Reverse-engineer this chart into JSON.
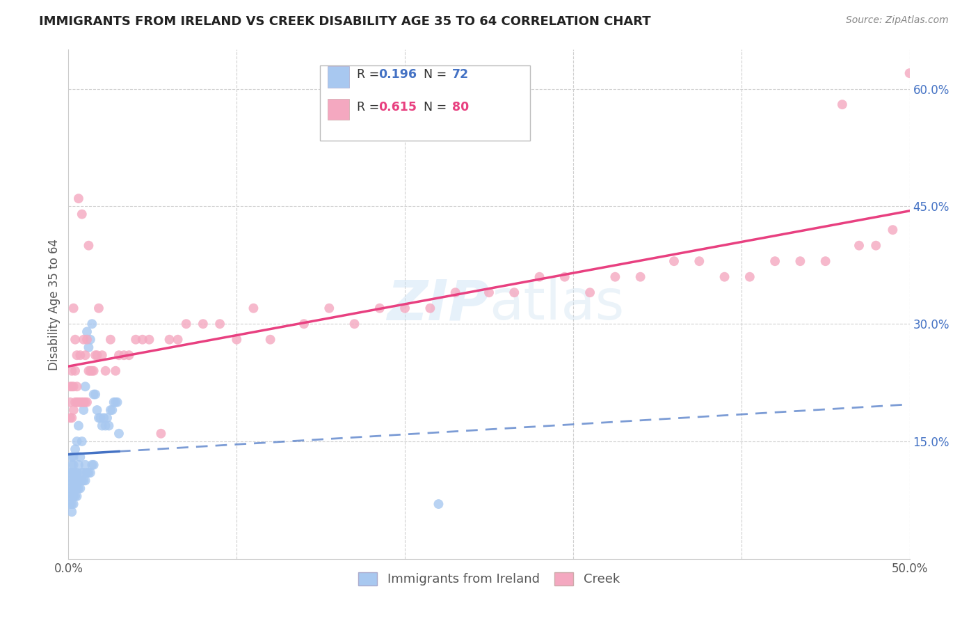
{
  "title": "IMMIGRANTS FROM IRELAND VS CREEK DISABILITY AGE 35 TO 64 CORRELATION CHART",
  "source": "Source: ZipAtlas.com",
  "ylabel": "Disability Age 35 to 64",
  "xlim": [
    0.0,
    0.5
  ],
  "ylim": [
    0.0,
    0.65
  ],
  "xticks": [
    0.0,
    0.1,
    0.2,
    0.3,
    0.4,
    0.5
  ],
  "xticklabels": [
    "0.0%",
    "",
    "",
    "",
    "",
    "50.0%"
  ],
  "yticks_right": [
    0.15,
    0.3,
    0.45,
    0.6
  ],
  "ytick_right_labels": [
    "15.0%",
    "30.0%",
    "45.0%",
    "60.0%"
  ],
  "legend_labels": [
    "Immigrants from Ireland",
    "Creek"
  ],
  "blue_R": "0.196",
  "blue_N": "72",
  "pink_R": "0.615",
  "pink_N": "80",
  "blue_color": "#a8c8f0",
  "pink_color": "#f4a8c0",
  "blue_line_color": "#4472c4",
  "pink_line_color": "#e84080",
  "blue_scatter_x": [
    0.001,
    0.001,
    0.001,
    0.001,
    0.001,
    0.002,
    0.002,
    0.002,
    0.002,
    0.002,
    0.002,
    0.002,
    0.002,
    0.003,
    0.003,
    0.003,
    0.003,
    0.003,
    0.003,
    0.003,
    0.004,
    0.004,
    0.004,
    0.004,
    0.004,
    0.005,
    0.005,
    0.005,
    0.005,
    0.005,
    0.006,
    0.006,
    0.006,
    0.006,
    0.007,
    0.007,
    0.007,
    0.008,
    0.008,
    0.008,
    0.009,
    0.009,
    0.009,
    0.01,
    0.01,
    0.01,
    0.011,
    0.011,
    0.012,
    0.012,
    0.013,
    0.013,
    0.014,
    0.014,
    0.015,
    0.015,
    0.016,
    0.017,
    0.018,
    0.019,
    0.02,
    0.021,
    0.022,
    0.023,
    0.024,
    0.025,
    0.026,
    0.027,
    0.028,
    0.029,
    0.22,
    0.03
  ],
  "blue_scatter_y": [
    0.07,
    0.08,
    0.09,
    0.1,
    0.11,
    0.06,
    0.07,
    0.08,
    0.09,
    0.1,
    0.11,
    0.12,
    0.13,
    0.07,
    0.08,
    0.09,
    0.1,
    0.11,
    0.12,
    0.13,
    0.08,
    0.09,
    0.1,
    0.11,
    0.14,
    0.08,
    0.09,
    0.1,
    0.11,
    0.15,
    0.09,
    0.1,
    0.12,
    0.17,
    0.09,
    0.1,
    0.13,
    0.1,
    0.11,
    0.15,
    0.1,
    0.11,
    0.19,
    0.1,
    0.12,
    0.22,
    0.11,
    0.29,
    0.11,
    0.27,
    0.11,
    0.28,
    0.12,
    0.3,
    0.12,
    0.21,
    0.21,
    0.19,
    0.18,
    0.18,
    0.17,
    0.18,
    0.17,
    0.18,
    0.17,
    0.19,
    0.19,
    0.2,
    0.2,
    0.2,
    0.07,
    0.16
  ],
  "pink_scatter_x": [
    0.001,
    0.001,
    0.001,
    0.002,
    0.002,
    0.002,
    0.003,
    0.003,
    0.003,
    0.004,
    0.004,
    0.004,
    0.005,
    0.005,
    0.005,
    0.006,
    0.006,
    0.007,
    0.007,
    0.008,
    0.008,
    0.009,
    0.009,
    0.01,
    0.01,
    0.011,
    0.011,
    0.012,
    0.012,
    0.013,
    0.014,
    0.015,
    0.016,
    0.017,
    0.018,
    0.02,
    0.022,
    0.025,
    0.028,
    0.03,
    0.033,
    0.036,
    0.04,
    0.044,
    0.048,
    0.055,
    0.06,
    0.065,
    0.07,
    0.08,
    0.09,
    0.1,
    0.11,
    0.12,
    0.14,
    0.155,
    0.17,
    0.185,
    0.2,
    0.215,
    0.23,
    0.25,
    0.265,
    0.28,
    0.295,
    0.31,
    0.325,
    0.34,
    0.36,
    0.375,
    0.39,
    0.405,
    0.42,
    0.435,
    0.45,
    0.46,
    0.47,
    0.48,
    0.49,
    0.5
  ],
  "pink_scatter_y": [
    0.2,
    0.22,
    0.18,
    0.22,
    0.18,
    0.24,
    0.19,
    0.22,
    0.32,
    0.2,
    0.24,
    0.28,
    0.2,
    0.22,
    0.26,
    0.2,
    0.46,
    0.2,
    0.26,
    0.2,
    0.44,
    0.2,
    0.28,
    0.2,
    0.26,
    0.2,
    0.28,
    0.24,
    0.4,
    0.24,
    0.24,
    0.24,
    0.26,
    0.26,
    0.32,
    0.26,
    0.24,
    0.28,
    0.24,
    0.26,
    0.26,
    0.26,
    0.28,
    0.28,
    0.28,
    0.16,
    0.28,
    0.28,
    0.3,
    0.3,
    0.3,
    0.28,
    0.32,
    0.28,
    0.3,
    0.32,
    0.3,
    0.32,
    0.32,
    0.32,
    0.34,
    0.34,
    0.34,
    0.36,
    0.36,
    0.34,
    0.36,
    0.36,
    0.38,
    0.38,
    0.36,
    0.36,
    0.38,
    0.38,
    0.38,
    0.58,
    0.4,
    0.4,
    0.42,
    0.62
  ]
}
